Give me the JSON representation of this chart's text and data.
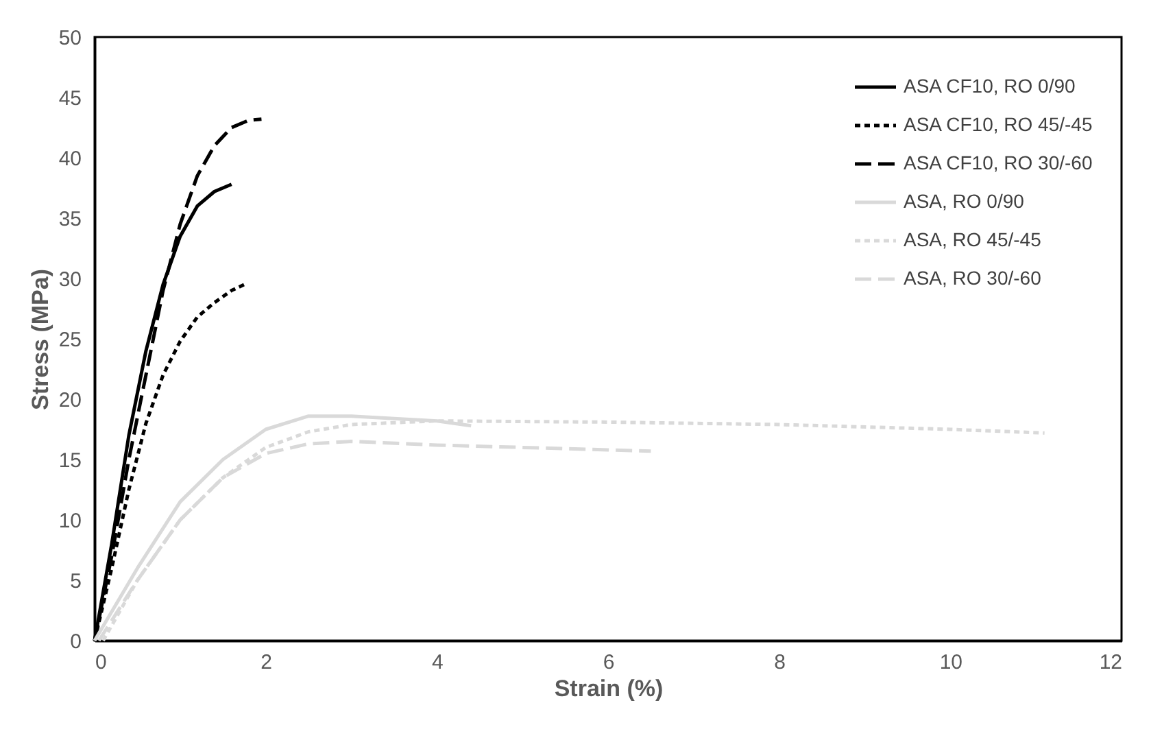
{
  "chart_data": {
    "type": "line",
    "xlabel": "Strain (%)",
    "ylabel": "Stress (MPa)",
    "xlim": [
      0,
      12
    ],
    "xticks": [
      0,
      2,
      4,
      6,
      8,
      10,
      12
    ],
    "ylim": [
      0,
      50
    ],
    "yticks": [
      0,
      5,
      10,
      15,
      20,
      25,
      30,
      35,
      40,
      45,
      50
    ],
    "grid": false,
    "legend": "top right",
    "marker": "none",
    "series": [
      {
        "name": "ASA CF10, RO 0/90",
        "color": "#000000",
        "line_style": "solid",
        "x": [
          0,
          0.2,
          0.4,
          0.6,
          0.8,
          1.0,
          1.2,
          1.4,
          1.6
        ],
        "values": [
          0,
          8,
          17,
          24,
          29.5,
          33.5,
          36,
          37.2,
          37.8
        ]
      },
      {
        "name": "ASA CF10, RO 45/-45",
        "color": "#000000",
        "line_style": "dotted",
        "x": [
          0,
          0.2,
          0.4,
          0.6,
          0.8,
          1.0,
          1.2,
          1.4,
          1.6,
          1.75
        ],
        "values": [
          0,
          6,
          12.5,
          18,
          22,
          24.8,
          26.8,
          28,
          29,
          29.5
        ]
      },
      {
        "name": "ASA CF10, RO 30/-60",
        "color": "#000000",
        "line_style": "dashed",
        "x": [
          0,
          0.2,
          0.4,
          0.6,
          0.8,
          1.0,
          1.2,
          1.4,
          1.6,
          1.8,
          1.95
        ],
        "values": [
          0,
          7,
          15,
          22,
          29,
          34.5,
          38.5,
          41,
          42.5,
          43.1,
          43.2
        ]
      },
      {
        "name": "ASA, RO 0/90",
        "color": "#d9d9d9",
        "line_style": "solid",
        "x": [
          0,
          0.5,
          1,
          1.5,
          2,
          2.5,
          3,
          3.5,
          4,
          4.4
        ],
        "values": [
          0,
          6,
          11.5,
          15,
          17.5,
          18.6,
          18.6,
          18.4,
          18.2,
          17.8
        ]
      },
      {
        "name": "ASA, RO 45/-45",
        "color": "#d9d9d9",
        "line_style": "dotted",
        "x": [
          0.1,
          0.5,
          1,
          1.5,
          2,
          2.5,
          3,
          4,
          6,
          8,
          10,
          11.1
        ],
        "values": [
          0,
          5,
          10,
          13.5,
          16,
          17.3,
          17.9,
          18.2,
          18.1,
          17.9,
          17.5,
          17.2
        ]
      },
      {
        "name": "ASA, RO 30/-60",
        "color": "#d9d9d9",
        "line_style": "dashed",
        "x": [
          0.05,
          0.5,
          1,
          1.5,
          2,
          2.5,
          3,
          4,
          5,
          6,
          6.5
        ],
        "values": [
          0,
          5,
          10,
          13.5,
          15.5,
          16.3,
          16.5,
          16.2,
          16,
          15.8,
          15.7
        ]
      }
    ]
  }
}
